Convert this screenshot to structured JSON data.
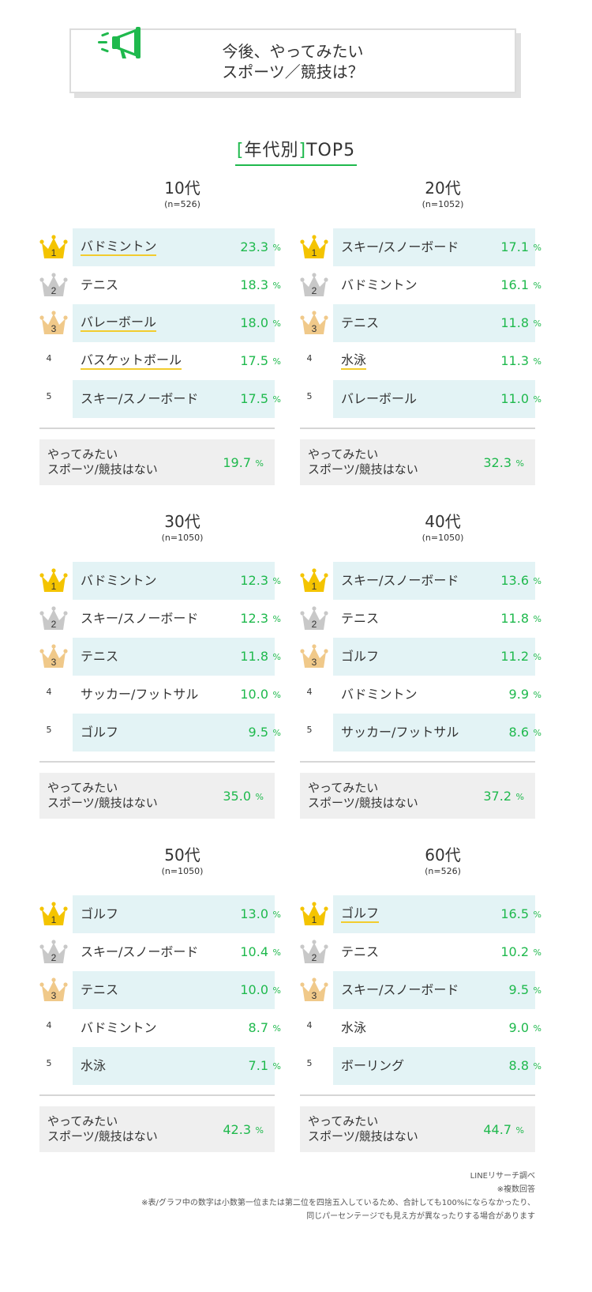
{
  "header": {
    "title_line1": "今後、やってみたい",
    "title_line2": "スポーツ／競技は？",
    "icon": "megaphone-icon"
  },
  "section": {
    "open_bracket": "[",
    "label": "年代別",
    "close_bracket": "]",
    "suffix": "TOP5"
  },
  "colors": {
    "accent_green": "#1fb94d",
    "row_shade": "#e3f3f5",
    "gold": "#f4c400",
    "silver": "#c8c8c8",
    "bronze": "#f0c98a",
    "highlight_underline": "#f2cc2e"
  },
  "percent_sign": "%",
  "chart_data": [
    {
      "type": "table",
      "age": "10代",
      "n": "(n=526)",
      "rows": [
        {
          "rank": "1",
          "label": "バドミントン",
          "value": "23.3"
        },
        {
          "rank": "2",
          "label": "テニス",
          "value": "18.3"
        },
        {
          "rank": "3",
          "label": "バレーボール",
          "value": "18.0"
        },
        {
          "rank": "4",
          "label": "バスケットボール",
          "value": "17.5"
        },
        {
          "rank": "5",
          "label": "スキー/スノーボード",
          "value": "17.5"
        }
      ],
      "none_label_line1": "やってみたい",
      "none_label_line2": "スポーツ/競技はない",
      "none_value": "19.7"
    },
    {
      "type": "table",
      "age": "20代",
      "n": "(n=1052)",
      "rows": [
        {
          "rank": "1",
          "label": "スキー/スノーボード",
          "value": "17.1"
        },
        {
          "rank": "2",
          "label": "バドミントン",
          "value": "16.1"
        },
        {
          "rank": "3",
          "label": "テニス",
          "value": "11.8"
        },
        {
          "rank": "4",
          "label": "水泳",
          "value": "11.3"
        },
        {
          "rank": "5",
          "label": "バレーボール",
          "value": "11.0"
        }
      ],
      "none_label_line1": "やってみたい",
      "none_label_line2": "スポーツ/競技はない",
      "none_value": "32.3"
    },
    {
      "type": "table",
      "age": "30代",
      "n": "(n=1050)",
      "rows": [
        {
          "rank": "1",
          "label": "バドミントン",
          "value": "12.3"
        },
        {
          "rank": "2",
          "label": "スキー/スノーボード",
          "value": "12.3"
        },
        {
          "rank": "3",
          "label": "テニス",
          "value": "11.8"
        },
        {
          "rank": "4",
          "label": "サッカー/フットサル",
          "value": "10.0"
        },
        {
          "rank": "5",
          "label": "ゴルフ",
          "value": "9.5"
        }
      ],
      "none_label_line1": "やってみたい",
      "none_label_line2": "スポーツ/競技はない",
      "none_value": "35.0"
    },
    {
      "type": "table",
      "age": "40代",
      "n": "(n=1050)",
      "rows": [
        {
          "rank": "1",
          "label": "スキー/スノーボード",
          "value": "13.6"
        },
        {
          "rank": "2",
          "label": "テニス",
          "value": "11.8"
        },
        {
          "rank": "3",
          "label": "ゴルフ",
          "value": "11.2"
        },
        {
          "rank": "4",
          "label": "バドミントン",
          "value": "9.9"
        },
        {
          "rank": "5",
          "label": "サッカー/フットサル",
          "value": "8.6"
        }
      ],
      "none_label_line1": "やってみたい",
      "none_label_line2": "スポーツ/競技はない",
      "none_value": "37.2"
    },
    {
      "type": "table",
      "age": "50代",
      "n": "(n=1050)",
      "rows": [
        {
          "rank": "1",
          "label": "ゴルフ",
          "value": "13.0"
        },
        {
          "rank": "2",
          "label": "スキー/スノーボード",
          "value": "10.4"
        },
        {
          "rank": "3",
          "label": "テニス",
          "value": "10.0"
        },
        {
          "rank": "4",
          "label": "バドミントン",
          "value": "8.7"
        },
        {
          "rank": "5",
          "label": "水泳",
          "value": "7.1"
        }
      ],
      "none_label_line1": "やってみたい",
      "none_label_line2": "スポーツ/競技はない",
      "none_value": "42.3"
    },
    {
      "type": "table",
      "age": "60代",
      "n": "(n=526)",
      "rows": [
        {
          "rank": "1",
          "label": "ゴルフ",
          "value": "16.5"
        },
        {
          "rank": "2",
          "label": "テニス",
          "value": "10.2"
        },
        {
          "rank": "3",
          "label": "スキー/スノーボード",
          "value": "9.5"
        },
        {
          "rank": "4",
          "label": "水泳",
          "value": "9.0"
        },
        {
          "rank": "5",
          "label": "ボーリング",
          "value": "8.8"
        }
      ],
      "none_label_line1": "やってみたい",
      "none_label_line2": "スポーツ/競技はない",
      "none_value": "44.7"
    }
  ],
  "notes": {
    "source": "LINEリサーチ調べ",
    "multi": "※複数回答",
    "rounding_line1": "※表/グラフ中の数字は小数第一位または第二位を四捨五入しているため、合計しても100%にならなかったり、",
    "rounding_line2": "同じパーセンテージでも見え方が異なったりする場合があります"
  }
}
